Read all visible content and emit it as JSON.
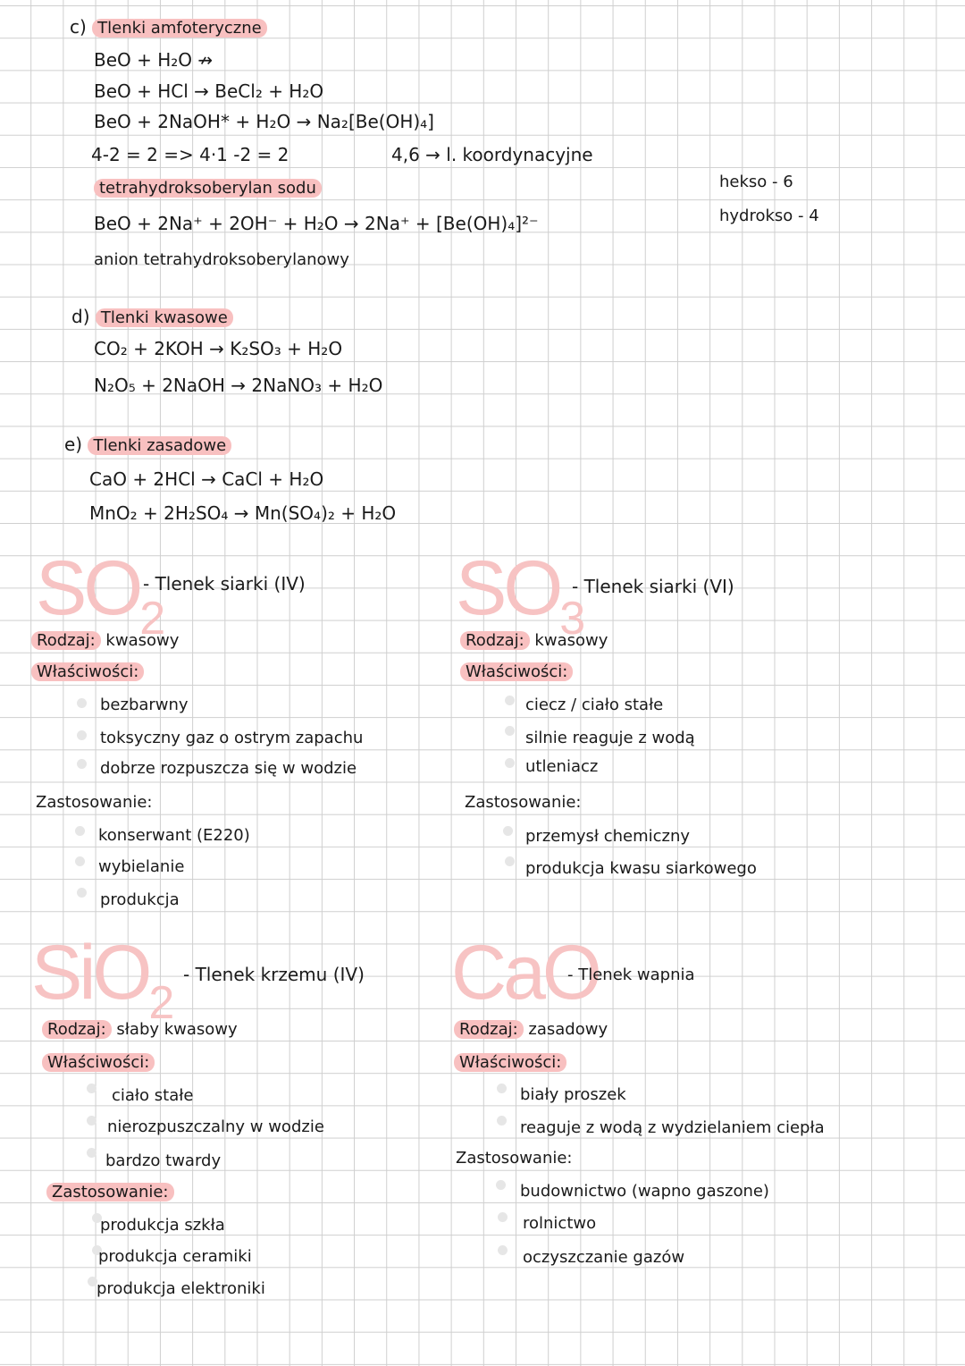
{
  "section_c": {
    "heading_letter": "c)",
    "heading": "Tlenki amfoteryczne",
    "lines": [
      "BeO + H₂O ↛",
      "BeO + HCl → BeCl₂ + H₂O",
      "BeO + 2NaOH* + H₂O → Na₂[Be(OH)₄]",
      "4-2 = 2 => 4·1 -2 = 2",
      "4,6 → l. koordynacyjne",
      "tetrahydroksoberylan sodu",
      "BeO + 2Na⁺ + 2OH⁻ + H₂O → 2Na⁺ + [Be(OH)₄]²⁻",
      "anion tetrahydroksoberylanowy"
    ],
    "side_notes": [
      "hekso - 6",
      "hydrokso - 4"
    ]
  },
  "section_d": {
    "heading_letter": "d)",
    "heading": "Tlenki kwasowe",
    "lines": [
      "CO₂ + 2KOH → K₂SO₃ + H₂O",
      "N₂O₅ + 2NaOH → 2NaNO₃ + H₂O"
    ]
  },
  "section_e": {
    "heading_letter": "e)",
    "heading": "Tlenki zasadowe",
    "lines": [
      "CaO + 2HCl → CaCl + H₂O",
      "MnO₂ + 2H₂SO₄ → Mn(SO₄)₂ + H₂O"
    ]
  },
  "cards": [
    {
      "formula": "SO",
      "sub": "2",
      "title": "- Tlenek siarki (IV)",
      "type_label": "Rodzaj:",
      "type": "kwasowy",
      "props_label": "Właściwości:",
      "props": [
        "bezbarwny",
        "toksyczny gaz o ostrym zapachu",
        "dobrze rozpuszcza się w wodzie"
      ],
      "uses_label": "Zastosowanie:",
      "uses": [
        "konserwant (E220)",
        "wybielanie",
        "produkcja"
      ]
    },
    {
      "formula": "SO",
      "sub": "3",
      "title": "- Tlenek siarki (VI)",
      "type_label": "Rodzaj:",
      "type": "kwasowy",
      "props_label": "Właściwości:",
      "props": [
        "ciecz / ciało stałe",
        "silnie reaguje z wodą",
        "utleniacz"
      ],
      "uses_label": "Zastosowanie:",
      "uses": [
        "przemysł chemiczny",
        "produkcja kwasu siarkowego"
      ]
    },
    {
      "formula": "SiO",
      "sub": "2",
      "title": "- Tlenek krzemu (IV)",
      "type_label": "Rodzaj:",
      "type": "słaby kwasowy",
      "props_label": "Właściwości:",
      "props": [
        "ciało stałe",
        "nierozpuszczalny w wodzie",
        "bardzo twardy"
      ],
      "uses_label": "Zastosowanie:",
      "uses": [
        "produkcja szkła",
        "produkcja ceramiki",
        "produkcja elektroniki"
      ]
    },
    {
      "formula": "CaO",
      "sub": "",
      "title": "- Tlenek wapnia",
      "type_label": "Rodzaj:",
      "type": "zasadowy",
      "props_label": "Właściwości:",
      "props": [
        "biały proszek",
        "reaguje z wodą z wydzielaniem ciepła"
      ],
      "uses_label": "Zastosowanie:",
      "uses": [
        "budownictwo (wapno gaszone)",
        "rolnictwo",
        "oczyszczanie gazów"
      ]
    }
  ],
  "colors": {
    "highlight": "#f8c0c0",
    "formula": "#f7c3c3",
    "grid": "#cfcfcf"
  }
}
